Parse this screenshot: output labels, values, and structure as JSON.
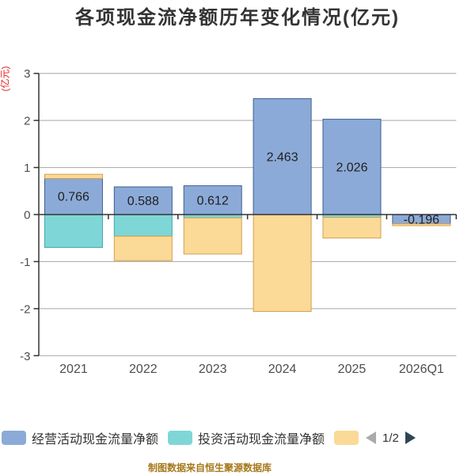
{
  "chart_data": {
    "type": "bar",
    "stacked": true,
    "title": "各项现金流净额历年变化情况(亿元)",
    "unit_label": "(亿元)",
    "categories": [
      "2021",
      "2022",
      "2023",
      "2024",
      "2025",
      "2026Q1"
    ],
    "series": [
      {
        "name": "经营活动现金流量净额",
        "color": "#8CAAD8",
        "border": "#3b5f8f",
        "values": [
          0.766,
          0.588,
          0.612,
          2.463,
          2.026,
          -0.196
        ]
      },
      {
        "name": "投资活动现金流量净额",
        "color": "#7FD6D7",
        "border": "#3caaaf",
        "values": [
          -0.7,
          -0.46,
          -0.07,
          0,
          -0.06,
          0
        ]
      },
      {
        "name": "",
        "color": "#FBD996",
        "border": "#d2a050",
        "values": [
          0.09,
          -0.52,
          -0.77,
          -2.06,
          -0.44,
          -0.04
        ]
      }
    ],
    "bar_labels": [
      "0.766",
      "0.588",
      "0.612",
      "2.463",
      "2.026",
      "-0.196"
    ],
    "ylim": [
      -3,
      3
    ],
    "yticks": [
      3,
      2,
      1,
      0,
      -1,
      -2,
      -3
    ],
    "grid": true,
    "legend_position": "bottom"
  },
  "legend": {
    "pager": {
      "page_text": "1/2",
      "prev_icon": "left-arrow",
      "next_icon": "right-arrow"
    }
  },
  "footer": {
    "source_note": "制图数据来自恒生聚源数据库"
  }
}
